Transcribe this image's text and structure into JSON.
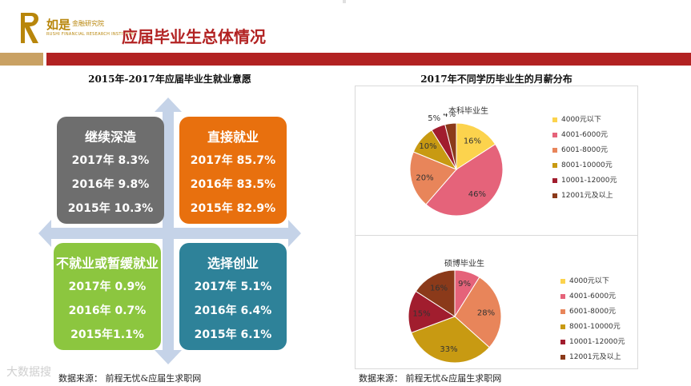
{
  "header": {
    "brand_cn": "如是",
    "brand_sub": "金融研究院",
    "brand_en": "RUSHI FINANCIAL RESEARCH INSTITUTE",
    "title": "应届毕业生总体情况"
  },
  "left_section": {
    "title": "2015年-2017年应届毕业生就业意愿",
    "quadrants": [
      {
        "title": "继续深造",
        "lines": [
          "2017年  8.3%",
          "2016年  9.8%",
          "2015年 10.3%"
        ],
        "color": "#6e6e6e"
      },
      {
        "title": "直接就业",
        "lines": [
          "2017年 85.7%",
          "2016年  83.5%",
          "2015年 82.9%"
        ],
        "color": "#e8700e"
      },
      {
        "title": "不就业或暂缓就业",
        "lines": [
          "2017年 0.9%",
          "2016年 0.7%",
          "2015年1.1%"
        ],
        "color": "#8cc63f"
      },
      {
        "title": "选择创业",
        "lines": [
          "2017年 5.1%",
          "2016年 6.4%",
          "2015年 6.1%"
        ],
        "color": "#2e8299"
      }
    ],
    "source": "数据来源： 前程无忧&应届生求职网"
  },
  "chart_data": [
    {
      "type": "pie",
      "title": "本科毕业生",
      "categories": [
        "4000元以下",
        "4001-6000元",
        "6001-8000元",
        "8001-10000元",
        "10001-12000元",
        "12001元及以上"
      ],
      "values": [
        16,
        46,
        20,
        10,
        5,
        4
      ],
      "labels": [
        "16%",
        "46%",
        "20%",
        "10%",
        "5%",
        "4%"
      ],
      "colors": [
        "#fcd34d",
        "#e5637a",
        "#e8855a",
        "#c89a12",
        "#a11d2e",
        "#8b3a1a"
      ],
      "legend_position": "right"
    },
    {
      "type": "pie",
      "title": "硕博毕业生",
      "categories": [
        "4000元以下",
        "4001-6000元",
        "6001-8000元",
        "8001-10000元",
        "10001-12000元",
        "12001元及以上"
      ],
      "values": [
        0,
        9,
        28,
        33,
        15,
        16
      ],
      "labels": [
        "",
        "9%",
        "28%",
        "33%",
        "15%",
        "16%"
      ],
      "colors": [
        "#fcd34d",
        "#e5637a",
        "#e8855a",
        "#c89a12",
        "#a11d2e",
        "#8b3a1a"
      ],
      "legend_position": "right"
    }
  ],
  "right_section": {
    "title": "2017年不同学历毕业生的月薪分布",
    "source": "数据来源： 前程无忧&应届生求职网"
  },
  "watermark": "大数据搜"
}
